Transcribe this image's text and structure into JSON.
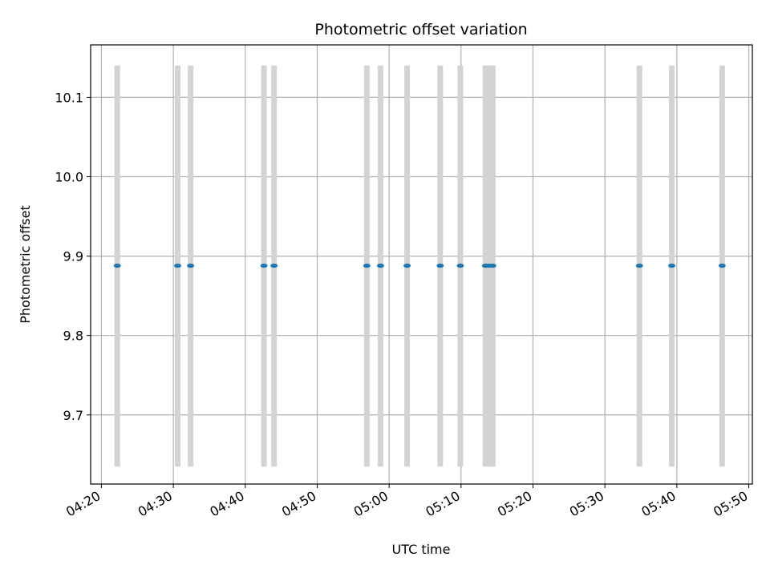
{
  "chart_data": {
    "type": "scatter",
    "title": "Photometric offset variation",
    "xlabel": "UTC time",
    "ylabel": "Photometric offset",
    "xlim": [
      "04:18:30",
      "05:50:30"
    ],
    "ylim": [
      9.613,
      10.166
    ],
    "grid": true,
    "x_ticks": [
      "04:20",
      "04:30",
      "04:40",
      "04:50",
      "05:00",
      "05:10",
      "05:20",
      "05:30",
      "05:40",
      "05:50"
    ],
    "y_ticks": [
      9.7,
      9.8,
      9.9,
      10.0,
      10.1
    ],
    "y_tick_labels": [
      "9.7",
      "9.8",
      "9.9",
      "10.0",
      "10.1"
    ],
    "band_range": [
      9.635,
      10.14
    ],
    "band_color": "#d3d3d3",
    "point_color": "#1f77b4",
    "points": [
      {
        "t": "04:22:12",
        "y": 9.888
      },
      {
        "t": "04:30:36",
        "y": 9.888
      },
      {
        "t": "04:32:24",
        "y": 9.888
      },
      {
        "t": "04:42:36",
        "y": 9.888
      },
      {
        "t": "04:44:00",
        "y": 9.888
      },
      {
        "t": "04:56:54",
        "y": 9.888
      },
      {
        "t": "04:58:48",
        "y": 9.888
      },
      {
        "t": "05:02:30",
        "y": 9.888
      },
      {
        "t": "05:07:06",
        "y": 9.888
      },
      {
        "t": "05:09:54",
        "y": 9.888
      },
      {
        "t": "05:13:24",
        "y": 9.888
      },
      {
        "t": "05:13:54",
        "y": 9.888
      },
      {
        "t": "05:14:24",
        "y": 9.888
      },
      {
        "t": "05:34:48",
        "y": 9.888
      },
      {
        "t": "05:39:18",
        "y": 9.888
      },
      {
        "t": "05:46:18",
        "y": 9.888
      }
    ]
  }
}
